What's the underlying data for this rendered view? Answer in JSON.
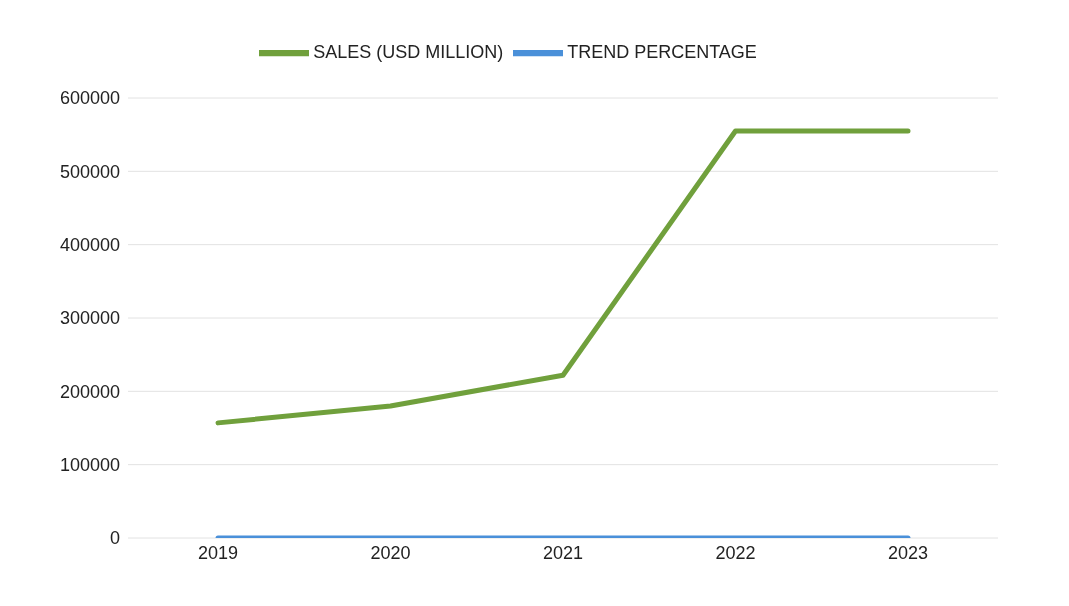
{
  "chart_data": {
    "type": "line",
    "categories": [
      "2019",
      "2020",
      "2021",
      "2022",
      "2023"
    ],
    "series": [
      {
        "name": "SALES (USD MILLION)",
        "color": "#70a03c",
        "values": [
          157000,
          180000,
          222000,
          555000,
          555000
        ]
      },
      {
        "name": "TREND PERCENTAGE",
        "color": "#4a90d9",
        "values": [
          0,
          0,
          0,
          0,
          0
        ]
      }
    ],
    "ylim": [
      0,
      600000
    ],
    "yticks": [
      0,
      100000,
      200000,
      300000,
      400000,
      500000,
      600000
    ],
    "grid": "y",
    "legend": "top",
    "marker": "none",
    "line_style": "solid"
  }
}
